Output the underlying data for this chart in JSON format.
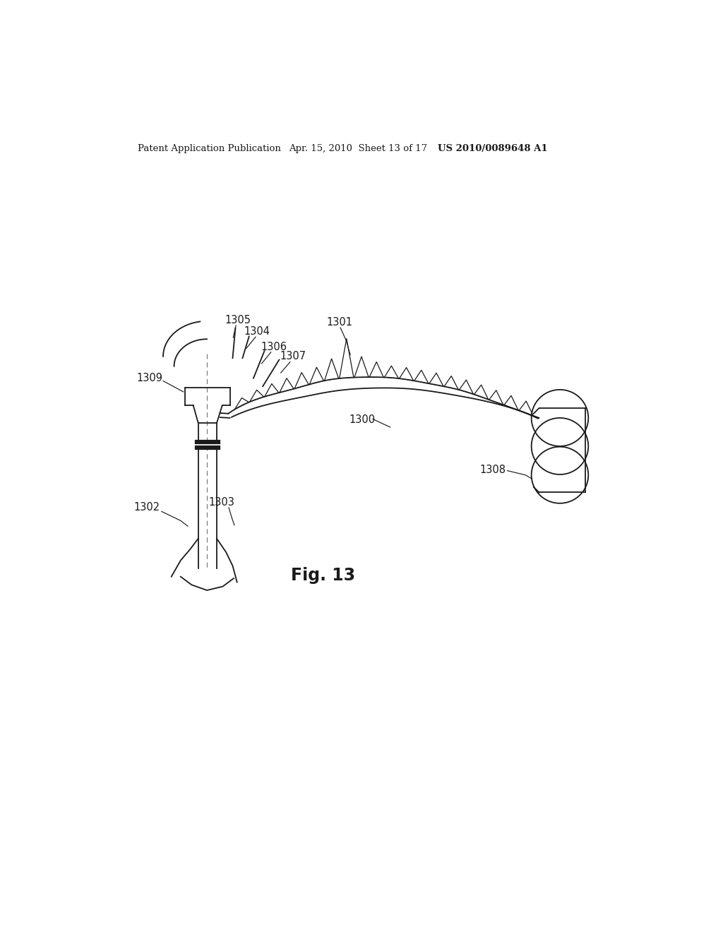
{
  "bg_color": "#ffffff",
  "line_color": "#1a1a1a",
  "header_left": "Patent Application Publication",
  "header_mid": "Apr. 15, 2010  Sheet 13 of 17",
  "header_right": "US 2010/0089648 A1",
  "fig_label": "Fig. 13",
  "lw": 1.3
}
